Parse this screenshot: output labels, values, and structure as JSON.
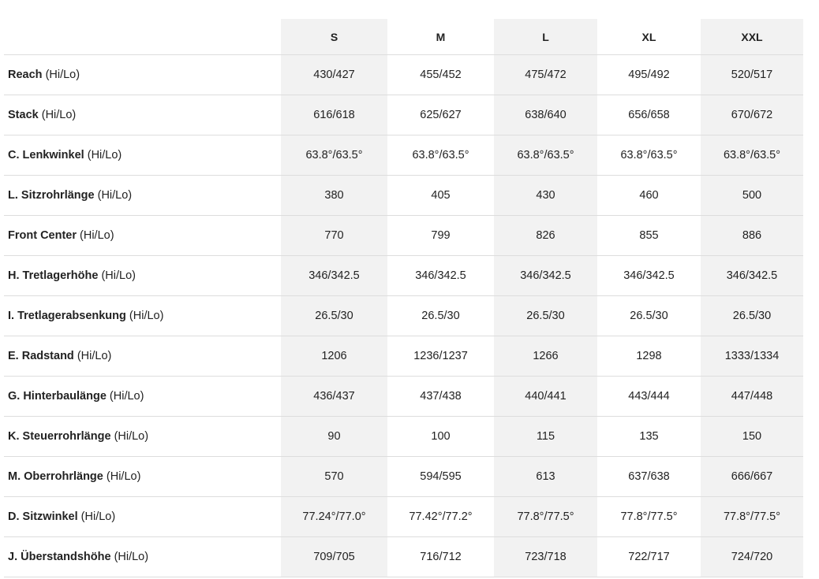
{
  "columns": [
    "S",
    "M",
    "L",
    "XL",
    "XXL"
  ],
  "rows": [
    {
      "name": "Reach",
      "suffix": "(Hi/Lo)",
      "values": [
        "430/427",
        "455/452",
        "475/472",
        "495/492",
        "520/517"
      ]
    },
    {
      "name": "Stack",
      "suffix": "(Hi/Lo)",
      "values": [
        "616/618",
        "625/627",
        "638/640",
        "656/658",
        "670/672"
      ]
    },
    {
      "name": "C. Lenkwinkel",
      "suffix": "(Hi/Lo)",
      "values": [
        "63.8°/63.5°",
        "63.8°/63.5°",
        "63.8°/63.5°",
        "63.8°/63.5°",
        "63.8°/63.5°"
      ]
    },
    {
      "name": "L. Sitzrohrlänge",
      "suffix": "(Hi/Lo)",
      "values": [
        "380",
        "405",
        "430",
        "460",
        "500"
      ]
    },
    {
      "name": "Front Center",
      "suffix": "(Hi/Lo)",
      "values": [
        "770",
        "799",
        "826",
        "855",
        "886"
      ]
    },
    {
      "name": "H. Tretlagerhöhe",
      "suffix": "(Hi/Lo)",
      "values": [
        "346/342.5",
        "346/342.5",
        "346/342.5",
        "346/342.5",
        "346/342.5"
      ]
    },
    {
      "name": "I. Tretlagerabsenkung",
      "suffix": "(Hi/Lo)",
      "values": [
        "26.5/30",
        "26.5/30",
        "26.5/30",
        "26.5/30",
        "26.5/30"
      ]
    },
    {
      "name": "E. Radstand",
      "suffix": "(Hi/Lo)",
      "values": [
        "1206",
        "1236/1237",
        "1266",
        "1298",
        "1333/1334"
      ]
    },
    {
      "name": "G. Hinterbaulänge",
      "suffix": "(Hi/Lo)",
      "values": [
        "436/437",
        "437/438",
        "440/441",
        "443/444",
        "447/448"
      ]
    },
    {
      "name": "K. Steuerrohrlänge",
      "suffix": "(Hi/Lo)",
      "values": [
        "90",
        "100",
        "115",
        "135",
        "150"
      ]
    },
    {
      "name": "M. Oberrohrlänge",
      "suffix": "(Hi/Lo)",
      "values": [
        "570",
        "594/595",
        "613",
        "637/638",
        "666/667"
      ]
    },
    {
      "name": "D. Sitzwinkel",
      "suffix": "(Hi/Lo)",
      "values": [
        "77.24°/77.0°",
        "77.42°/77.2°",
        "77.8°/77.5°",
        "77.8°/77.5°",
        "77.8°/77.5°"
      ]
    },
    {
      "name": "J. Überstandshöhe",
      "suffix": "(Hi/Lo)",
      "values": [
        "709/705",
        "716/712",
        "723/718",
        "722/717",
        "724/720"
      ]
    }
  ]
}
